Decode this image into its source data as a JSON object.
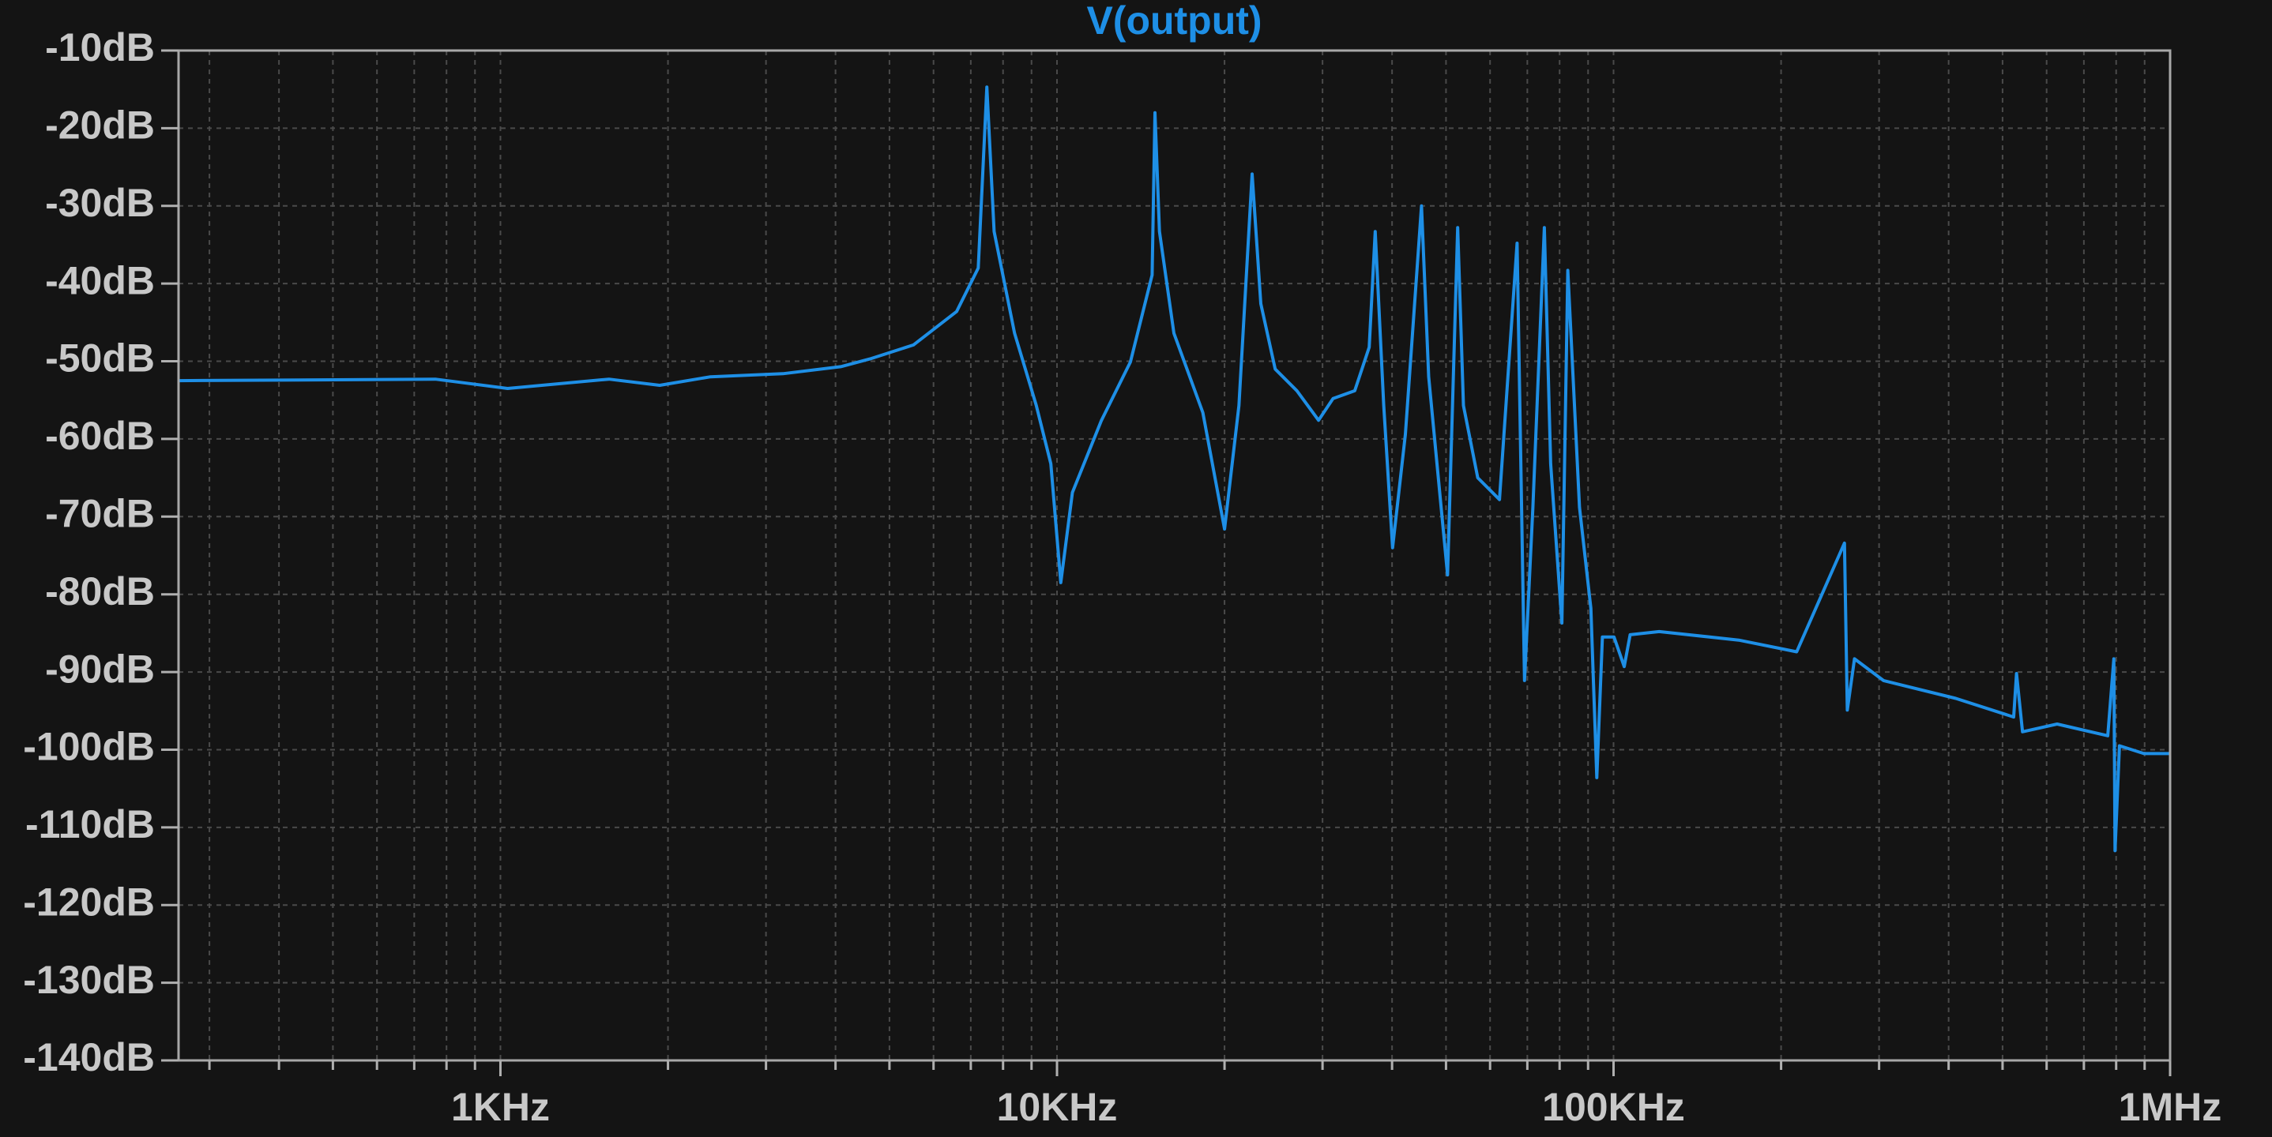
{
  "chart_data": {
    "type": "line",
    "x": [
      264,
      764,
      1030,
      1567,
      1933,
      2385,
      3217,
      4087,
      4610,
      5520,
      6600,
      7220,
      7480,
      7710,
      8390,
      9180,
      9750,
      10160,
      10660,
      12020,
      13550,
      14820,
      15000,
      15280,
      16220,
      18280,
      20000,
      21230,
      22420,
      23240,
      24660,
      26980,
      29510,
      31330,
      34280,
      36390,
      37310,
      38650,
      40090,
      42270,
      45180,
      46550,
      50330,
      52480,
      53740,
      57020,
      62370,
      67100,
      69180,
      71620,
      75110,
      77090,
      80760,
      82760,
      86860,
      91050,
      93300,
      95500,
      100200,
      104500,
      107100,
      120800,
      167900,
      213300,
      260000,
      263000,
      271000,
      305500,
      412000,
      523600,
      529700,
      543000,
      626600,
      772700,
      792500,
      796200,
      811000,
      897600,
      1000000
    ],
    "series": [
      {
        "name": "V(output)",
        "color": "#1e8fe6",
        "values": [
          -52.5,
          -52.3,
          -53.5,
          -52.3,
          -53.1,
          -52.0,
          -51.6,
          -50.7,
          -49.7,
          -47.9,
          -43.6,
          -38.0,
          -14.7,
          -33.3,
          -46.4,
          -55.7,
          -63.2,
          -78.5,
          -66.9,
          -57.6,
          -50.1,
          -38.9,
          -18.0,
          -33.3,
          -46.4,
          -56.6,
          -71.6,
          -55.7,
          -25.9,
          -42.6,
          -51.0,
          -53.8,
          -57.6,
          -54.8,
          -53.8,
          -48.2,
          -33.3,
          -55.7,
          -74.0,
          -59.4,
          -30.0,
          -52.0,
          -77.5,
          -32.8,
          -55.7,
          -65.0,
          -67.8,
          -34.8,
          -91.1,
          -68.8,
          -32.8,
          -63.2,
          -83.7,
          -38.3,
          -68.8,
          -81.8,
          -103.6,
          -85.5,
          -85.5,
          -89.3,
          -85.2,
          -84.8,
          -85.9,
          -87.4,
          -73.4,
          -94.9,
          -88.3,
          -91.1,
          -93.4,
          -95.8,
          -90.2,
          -97.7,
          -96.7,
          -98.2,
          -88.3,
          -113.0,
          -99.5,
          -100.5,
          -100.5
        ]
      }
    ],
    "xlim": [
      264,
      1000000
    ],
    "log_x": true,
    "xticks": [
      {
        "value": 1000,
        "label": "1KHz"
      },
      {
        "value": 10000,
        "label": "10KHz"
      },
      {
        "value": 100000,
        "label": "100KHz"
      },
      {
        "value": 1000000,
        "label": "1MHz"
      }
    ],
    "ylim": [
      -140,
      -10
    ],
    "yticks": [
      {
        "value": -10,
        "label": "-10dB"
      },
      {
        "value": -20,
        "label": "-20dB"
      },
      {
        "value": -30,
        "label": "-30dB"
      },
      {
        "value": -40,
        "label": "-40dB"
      },
      {
        "value": -50,
        "label": "-50dB"
      },
      {
        "value": -60,
        "label": "-60dB"
      },
      {
        "value": -70,
        "label": "-70dB"
      },
      {
        "value": -80,
        "label": "-80dB"
      },
      {
        "value": -90,
        "label": "-90dB"
      },
      {
        "value": -100,
        "label": "-100dB"
      },
      {
        "value": -110,
        "label": "-110dB"
      },
      {
        "value": -120,
        "label": "-120dB"
      },
      {
        "value": -130,
        "label": "-130dB"
      },
      {
        "value": -140,
        "label": "-140dB"
      }
    ],
    "grid": true,
    "minor_grid": true
  }
}
